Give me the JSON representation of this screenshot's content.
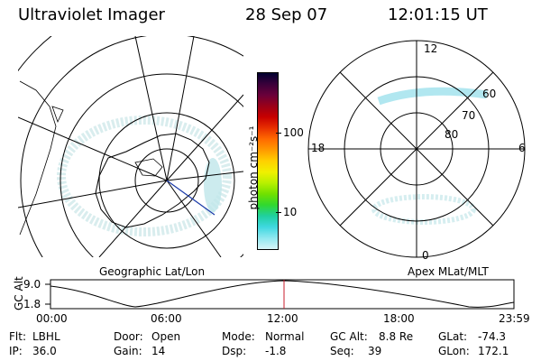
{
  "header": {
    "instrument": "Ultraviolet Imager",
    "date": "28 Sep 07",
    "time": "12:01:15 UT"
  },
  "left_panel": {
    "caption": "Geographic Lat/Lon"
  },
  "right_panel": {
    "caption": "Apex MLat/MLT",
    "mlt_labels": {
      "top": "12",
      "left": "18",
      "right": "6",
      "bottom": "0"
    },
    "lat_labels": [
      "60",
      "70",
      "80"
    ]
  },
  "colorbar": {
    "label": "photon cm⁻²s⁻¹",
    "tick_labels": [
      "100",
      "10"
    ],
    "colors": [
      "#000030",
      "#3a003a",
      "#6a003a",
      "#9a0018",
      "#c80000",
      "#e83000",
      "#ff6a00",
      "#ff9a00",
      "#ffd000",
      "#f0f000",
      "#b8f000",
      "#70e000",
      "#30d830",
      "#20d0a0",
      "#40d8e0",
      "#90e8f0",
      "#d8f4f8"
    ]
  },
  "timeline": {
    "y_axis_label": "GC Alt",
    "y_ticks": [
      "9.0",
      "1.8"
    ],
    "x_ticks": [
      "00:00",
      "06:00",
      "12:00",
      "18:00",
      "23:59"
    ]
  },
  "info": {
    "row1": [
      {
        "label": "Flt:",
        "value": "LBHL"
      },
      {
        "label": "Door:",
        "value": "Open"
      },
      {
        "label": "Mode:",
        "value": "Normal"
      },
      {
        "label": "GC Alt:",
        "value": "8.8 Re"
      },
      {
        "label": "GLat:",
        "value": "-74.3"
      }
    ],
    "row2": [
      {
        "label": "IP:",
        "value": "36.0"
      },
      {
        "label": "Gain:",
        "value": "14"
      },
      {
        "label": "Dsp:",
        "value": "-1.8"
      },
      {
        "label": "Seq:",
        "value": "39"
      },
      {
        "label": "GLon:",
        "value": "172.1"
      }
    ]
  }
}
